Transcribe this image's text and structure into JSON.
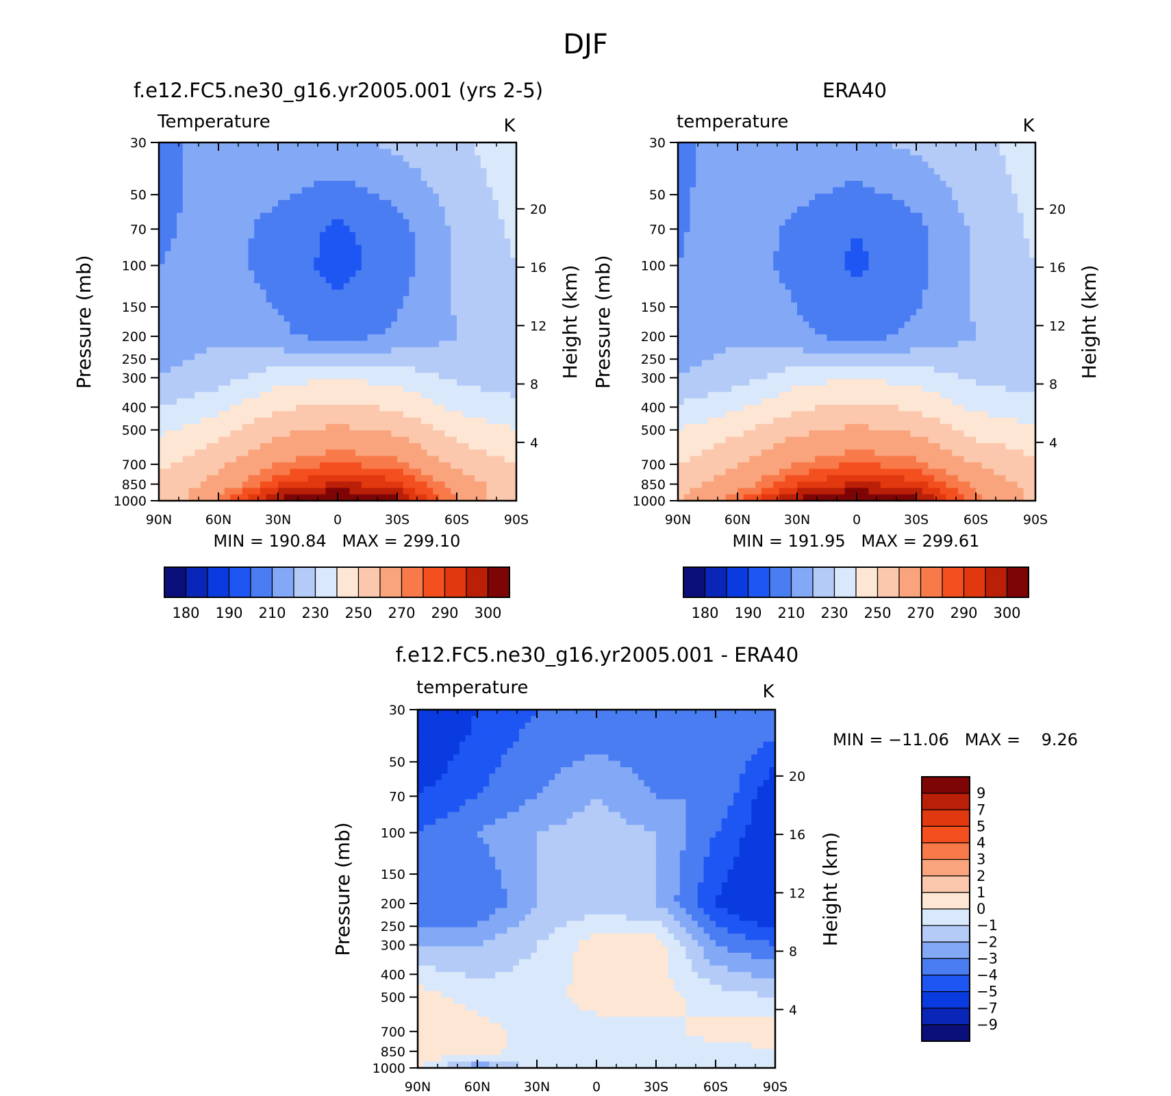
{
  "figure": {
    "title": "DJF"
  },
  "panels": {
    "model": {
      "title": "f.e12.FC5.ne30_g16.yr2005.001 (yrs 2-5)",
      "left_label": "Temperature",
      "units": "K",
      "ylabel": "Pressure (mb)",
      "ylabel_right": "Height (km)",
      "minmax": "MIN = 190.84   MAX = 299.10"
    },
    "obs": {
      "title": "ERA40",
      "left_label": "temperature",
      "units": "K",
      "ylabel": "Pressure (mb)",
      "ylabel_right": "Height (km)",
      "minmax": "MIN = 191.95   MAX = 299.61"
    },
    "diff": {
      "title": "f.e12.FC5.ne30_g16.yr2005.001 - ERA40",
      "left_label": "temperature",
      "units": "K",
      "ylabel": "Pressure (mb)",
      "ylabel_right": "Height (km)",
      "minmax": "MIN = −11.06   MAX =    9.26"
    }
  },
  "colors": {
    "temperature": [
      "#0b0f7a",
      "#0926b8",
      "#0a3be0",
      "#1e56f4",
      "#4a7cf2",
      "#82a8f6",
      "#b4cbf8",
      "#d9e8fb",
      "#fde6d4",
      "#fcc8ad",
      "#f9a47c",
      "#f87a4a",
      "#f4501f",
      "#e23810",
      "#ba1f08",
      "#7e0505"
    ],
    "difference": [
      "#0b0f7a",
      "#0926b8",
      "#0a3be0",
      "#1e56f4",
      "#4a7cf2",
      "#82a8f6",
      "#b4cbf8",
      "#d9e8fb",
      "#fde6d4",
      "#fcc8ad",
      "#f9a47c",
      "#f87a4a",
      "#f4501f",
      "#e23810",
      "#ba1f08",
      "#7e0505"
    ]
  },
  "chart_data": [
    {
      "type": "heatmap",
      "name": "model",
      "title": "f.e12.FC5.ne30_g16.yr2005.001 (yrs 2-5)",
      "x_ticks": [
        "90N",
        "60N",
        "30N",
        "0",
        "30S",
        "60S",
        "90S"
      ],
      "x_lat": [
        90,
        60,
        30,
        0,
        -30,
        -60,
        -90
      ],
      "y_ticks": [
        30,
        50,
        70,
        100,
        150,
        200,
        250,
        300,
        400,
        500,
        700,
        850,
        1000
      ],
      "y_scale": "log",
      "ylim": [
        30,
        1000
      ],
      "right_ticks": [
        4,
        8,
        12,
        16,
        20
      ],
      "colorbar_labels": [
        "180",
        "190",
        "210",
        "230",
        "250",
        "270",
        "290",
        "300"
      ],
      "columns": [
        90,
        60,
        30,
        0,
        -30,
        -60,
        -90
      ],
      "rows": [
        {
          "p": 30,
          "t": [
            207,
            214,
            218,
            218,
            222,
            228,
            236
          ]
        },
        {
          "p": 70,
          "t": [
            208,
            214,
            207,
            198,
            206,
            222,
            232
          ]
        },
        {
          "p": 100,
          "t": [
            210,
            214,
            206,
            196,
            205,
            222,
            230
          ]
        },
        {
          "p": 200,
          "t": [
            214,
            218,
            212,
            206,
            212,
            220,
            224
          ]
        },
        {
          "p": 300,
          "t": [
            220,
            226,
            236,
            240,
            236,
            228,
            224
          ]
        },
        {
          "p": 500,
          "t": [
            238,
            246,
            258,
            262,
            258,
            246,
            240
          ]
        },
        {
          "p": 700,
          "t": [
            248,
            258,
            270,
            276,
            272,
            258,
            250
          ]
        },
        {
          "p": 850,
          "t": [
            252,
            264,
            280,
            286,
            282,
            266,
            254
          ]
        },
        {
          "p": 1000,
          "t": [
            250,
            272,
            292,
            298,
            292,
            270,
            252
          ]
        }
      ]
    },
    {
      "type": "heatmap",
      "name": "obs",
      "title": "ERA40",
      "x_ticks": [
        "90N",
        "60N",
        "30N",
        "0",
        "30S",
        "60S",
        "90S"
      ],
      "x_lat": [
        90,
        60,
        30,
        0,
        -30,
        -60,
        -90
      ],
      "y_ticks": [
        30,
        50,
        70,
        100,
        150,
        200,
        250,
        300,
        400,
        500,
        700,
        850,
        1000
      ],
      "y_scale": "log",
      "ylim": [
        30,
        1000
      ],
      "right_ticks": [
        4,
        8,
        12,
        16,
        20
      ],
      "colorbar_labels": [
        "180",
        "190",
        "210",
        "230",
        "250",
        "270",
        "290",
        "300"
      ],
      "columns": [
        90,
        60,
        30,
        0,
        -30,
        -60,
        -90
      ],
      "rows": [
        {
          "p": 30,
          "t": [
            208,
            214,
            218,
            218,
            222,
            228,
            234
          ]
        },
        {
          "p": 70,
          "t": [
            209,
            215,
            208,
            200,
            207,
            222,
            232
          ]
        },
        {
          "p": 100,
          "t": [
            210,
            215,
            207,
            198,
            206,
            222,
            230
          ]
        },
        {
          "p": 200,
          "t": [
            214,
            218,
            212,
            206,
            212,
            220,
            224
          ]
        },
        {
          "p": 300,
          "t": [
            220,
            226,
            236,
            240,
            236,
            228,
            224
          ]
        },
        {
          "p": 500,
          "t": [
            240,
            248,
            258,
            262,
            258,
            246,
            242
          ]
        },
        {
          "p": 700,
          "t": [
            250,
            260,
            270,
            276,
            272,
            260,
            252
          ]
        },
        {
          "p": 850,
          "t": [
            256,
            266,
            280,
            286,
            282,
            268,
            256
          ]
        },
        {
          "p": 1000,
          "t": [
            260,
            274,
            292,
            298,
            292,
            272,
            258
          ]
        }
      ]
    },
    {
      "type": "heatmap",
      "name": "diff",
      "title": "f.e12.FC5.ne30_g16.yr2005.001 - ERA40",
      "x_ticks": [
        "90N",
        "60N",
        "30N",
        "0",
        "30S",
        "60S",
        "90S"
      ],
      "x_lat": [
        90,
        60,
        30,
        0,
        -30,
        -60,
        -90
      ],
      "y_ticks": [
        30,
        50,
        70,
        100,
        150,
        200,
        250,
        300,
        400,
        500,
        700,
        850,
        1000
      ],
      "y_scale": "log",
      "ylim": [
        30,
        1000
      ],
      "right_ticks": [
        4,
        8,
        12,
        16,
        20
      ],
      "colorbar_labels": [
        "9",
        "7",
        "5",
        "4",
        "3",
        "2",
        "1",
        "0",
        "−1",
        "−2",
        "−3",
        "−4",
        "−5",
        "−7",
        "−9"
      ],
      "columns": [
        90,
        60,
        30,
        0,
        -30,
        -60,
        -90
      ],
      "rows": [
        {
          "p": 30,
          "t": [
            -7,
            -5,
            -4,
            -4,
            -4,
            -3,
            -3
          ]
        },
        {
          "p": 70,
          "t": [
            -5,
            -4,
            -3,
            -2,
            -3,
            -3,
            -6
          ]
        },
        {
          "p": 100,
          "t": [
            -4,
            -3,
            -2,
            -1.5,
            -2,
            -4,
            -6
          ]
        },
        {
          "p": 200,
          "t": [
            -4,
            -4,
            -2,
            -1.5,
            -2,
            -5,
            -7
          ]
        },
        {
          "p": 300,
          "t": [
            -2,
            -2,
            -1,
            0.5,
            0.5,
            -3,
            -4
          ]
        },
        {
          "p": 500,
          "t": [
            0.5,
            -0.5,
            -0.5,
            0.5,
            0.5,
            -0.5,
            -1
          ]
        },
        {
          "p": 700,
          "t": [
            1,
            0.5,
            -0.5,
            -0.5,
            -0.5,
            0.5,
            0.5
          ]
        },
        {
          "p": 850,
          "t": [
            1,
            0.5,
            -0.5,
            -0.5,
            -0.5,
            -0.5,
            0
          ]
        },
        {
          "p": 1000,
          "t": [
            0,
            -3,
            -0.5,
            -0.5,
            -0.5,
            -0.5,
            -1
          ]
        }
      ]
    }
  ]
}
